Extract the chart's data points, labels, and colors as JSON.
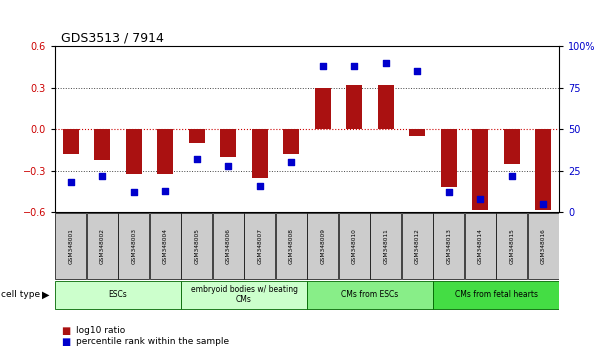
{
  "title": "GDS3513 / 7914",
  "samples": [
    "GSM348001",
    "GSM348002",
    "GSM348003",
    "GSM348004",
    "GSM348005",
    "GSM348006",
    "GSM348007",
    "GSM348008",
    "GSM348009",
    "GSM348010",
    "GSM348011",
    "GSM348012",
    "GSM348013",
    "GSM348014",
    "GSM348015",
    "GSM348016"
  ],
  "log10_ratio": [
    -0.18,
    -0.22,
    -0.32,
    -0.32,
    -0.1,
    -0.2,
    -0.35,
    -0.18,
    0.3,
    0.32,
    0.32,
    -0.05,
    -0.42,
    -0.58,
    -0.25,
    -0.58
  ],
  "percentile_rank": [
    18,
    22,
    12,
    13,
    32,
    28,
    16,
    30,
    88,
    88,
    90,
    85,
    12,
    8,
    22,
    5
  ],
  "cell_type_groups": [
    {
      "label": "ESCs",
      "start": 0,
      "end": 3,
      "color": "#ccffcc"
    },
    {
      "label": "embryoid bodies w/ beating\nCMs",
      "start": 4,
      "end": 7,
      "color": "#ccffcc"
    },
    {
      "label": "CMs from ESCs",
      "start": 8,
      "end": 11,
      "color": "#88ee88"
    },
    {
      "label": "CMs from fetal hearts",
      "start": 12,
      "end": 15,
      "color": "#44dd44"
    }
  ],
  "ylim_left": [
    -0.6,
    0.6
  ],
  "ylim_right": [
    0,
    100
  ],
  "yticks_left": [
    -0.6,
    -0.3,
    0.0,
    0.3,
    0.6
  ],
  "yticks_right": [
    0,
    25,
    50,
    75,
    100
  ],
  "ytick_labels_right": [
    "0",
    "25",
    "50",
    "75",
    "100%"
  ],
  "bar_color": "#aa1111",
  "dot_color": "#0000cc",
  "hline0_color": "#cc0000",
  "grid_color": "#444444",
  "legend_items": [
    {
      "label": "log10 ratio",
      "color": "#aa1111"
    },
    {
      "label": "percentile rank within the sample",
      "color": "#0000cc"
    }
  ],
  "cell_type_label": "cell type",
  "sample_box_color": "#cccccc"
}
